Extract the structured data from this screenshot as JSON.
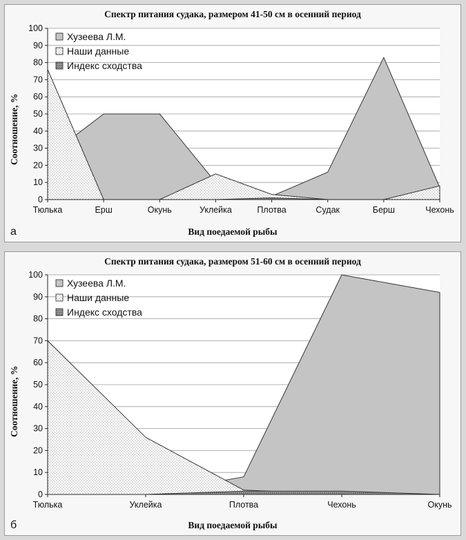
{
  "chart_data": [
    {
      "type": "area",
      "title": "Спектр питания судака, размером 41-50 см в осенний период",
      "xlabel": "Вид поедаемой рыбы",
      "ylabel": "Соотношение, %",
      "panel_label": "а",
      "categories": [
        "Тюлька",
        "Ерш",
        "Окунь",
        "Уклейка",
        "Плотва",
        "Судак",
        "Берш",
        "Чехонь"
      ],
      "ylim": [
        0,
        100
      ],
      "yticks": [
        "0",
        "10",
        "20",
        "30",
        "40",
        "50",
        "60",
        "70",
        "80",
        "90",
        "100"
      ],
      "grid": true,
      "legend_position": "top-left",
      "series": [
        {
          "name": "Хузеева Л.М.",
          "values": [
            25,
            50,
            50,
            10,
            2,
            16,
            83,
            7
          ],
          "fill": "#c4c4c4"
        },
        {
          "name": "Наши данные",
          "values": [
            76,
            0,
            0,
            15,
            3,
            0,
            0,
            8
          ],
          "fill": "dots"
        },
        {
          "name": "Индекс сходства",
          "values": [
            0,
            0,
            0,
            0,
            1,
            0,
            0,
            0
          ],
          "fill": "#8a8a8a"
        }
      ]
    },
    {
      "type": "area",
      "title": "Спектр питания судака, размером 51-60 см в осенний период",
      "xlabel": "Вид поедаемой рыбы",
      "ylabel": "Соотношение, %",
      "panel_label": "б",
      "categories": [
        "Тюлька",
        "Уклейка",
        "Плотва",
        "Чехонь",
        "Окунь"
      ],
      "ylim": [
        0,
        100
      ],
      "yticks": [
        "0",
        "10",
        "20",
        "30",
        "40",
        "50",
        "60",
        "70",
        "80",
        "90",
        "100"
      ],
      "grid": true,
      "legend_position": "top-left",
      "series": [
        {
          "name": "Хузеева Л.М.",
          "values": [
            0,
            0,
            8,
            100,
            92
          ],
          "fill": "#c4c4c4"
        },
        {
          "name": "Наши данные",
          "values": [
            70,
            26,
            2,
            0,
            0
          ],
          "fill": "dots"
        },
        {
          "name": "Индекс сходства",
          "values": [
            0,
            0,
            1.5,
            1.5,
            0
          ],
          "fill": "#8a8a8a"
        }
      ]
    }
  ]
}
